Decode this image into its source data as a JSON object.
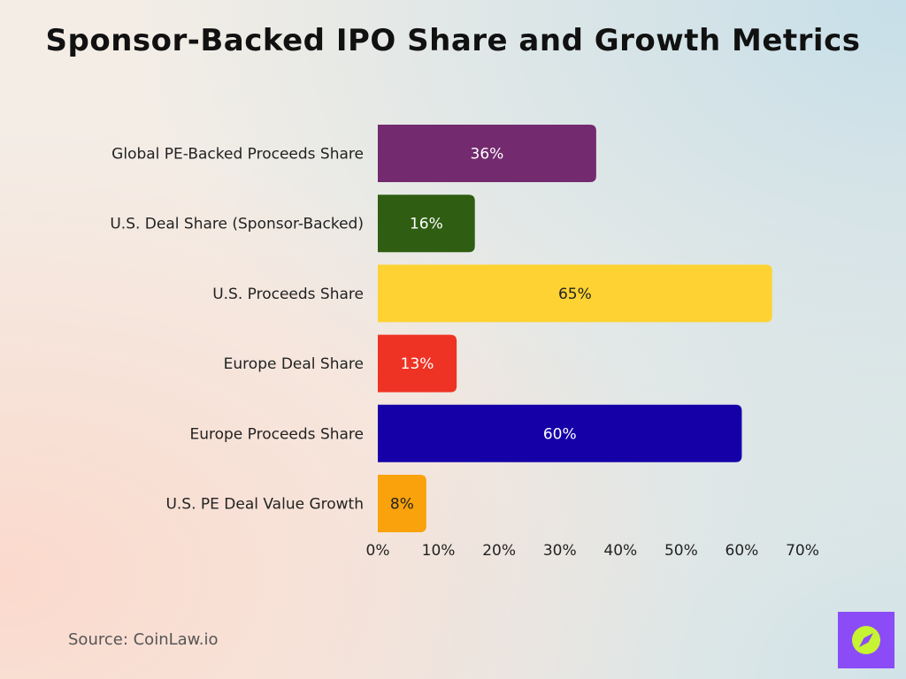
{
  "title": "Sponsor-Backed IPO Share and Growth Metrics",
  "source": "Source: CoinLaw.io",
  "chart_data": {
    "type": "bar",
    "orientation": "horizontal",
    "title": "Sponsor-Backed IPO Share and Growth Metrics",
    "xlabel": "",
    "ylabel": "",
    "xlim": [
      0,
      70
    ],
    "categories": [
      "Global PE-Backed Proceeds Share",
      "U.S. Deal Share (Sponsor-Backed)",
      "U.S. Proceeds Share",
      "Europe Deal Share",
      "Europe Proceeds Share",
      "U.S. PE Deal Value Growth"
    ],
    "values": [
      36,
      16,
      65,
      13,
      60,
      8
    ],
    "value_labels": [
      "36%",
      "16%",
      "65%",
      "13%",
      "60%",
      "8%"
    ],
    "colors": [
      "#732a6e",
      "#2f5e12",
      "#fdd232",
      "#ee3324",
      "#1500a8",
      "#f9a20b"
    ],
    "label_colors": [
      "#ffffff",
      "#ffffff",
      "#222222",
      "#ffffff",
      "#ffffff",
      "#222222"
    ],
    "x_ticks": [
      0,
      10,
      20,
      30,
      40,
      50,
      60,
      70
    ],
    "x_tick_labels": [
      "0%",
      "10%",
      "20%",
      "30%",
      "40%",
      "50%",
      "60%",
      "70%"
    ],
    "grid": false,
    "legend": "none"
  },
  "logo": {
    "icon": "compass-icon",
    "bg_color": "#8b4cf7",
    "fg_color": "#c6f432"
  }
}
